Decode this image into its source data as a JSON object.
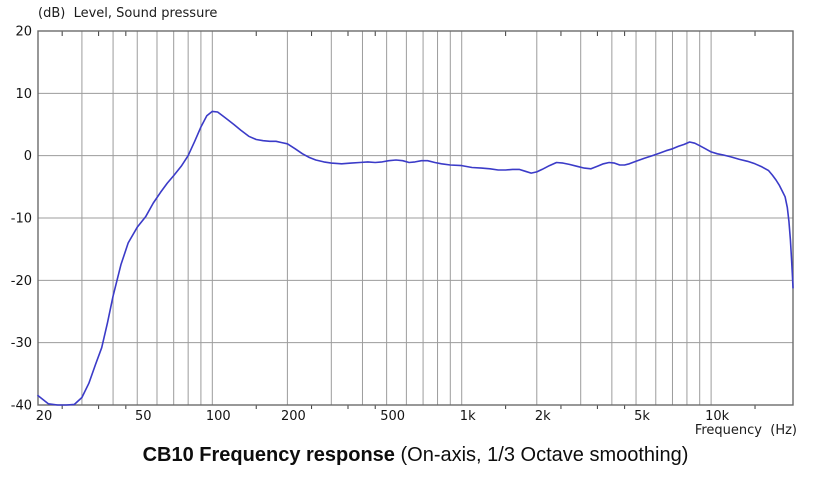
{
  "header": {
    "y_axis_title": "(dB)  Level, Sound pressure"
  },
  "footer": {
    "x_axis_title": "Frequency  (Hz)"
  },
  "caption": {
    "title_bold": "CB10 Frequency response",
    "title_normal": " (On-axis, 1/3 Octave smoothing)"
  },
  "colors": {
    "curve": "#3b3bc8",
    "grid": "#9c9c9c",
    "border": "#6b6b6b",
    "tick": "#3a3a3a",
    "text": "#141414"
  },
  "chart_data": {
    "type": "line",
    "title": "CB10 Frequency response (On-axis, 1/3 Octave smoothing)",
    "xlabel": "Frequency (Hz)",
    "ylabel": "(dB) Level, Sound pressure",
    "x_scale": "log",
    "x_range_hz": [
      20,
      21300
    ],
    "y_range_db": [
      -40,
      20
    ],
    "grid": true,
    "legend": "none",
    "y_gridlines_db": [
      20,
      10,
      0,
      -10,
      -20,
      -30,
      -40
    ],
    "y_tick_labels": [
      "20",
      "10",
      "0",
      "-10",
      "-20",
      "-30",
      "-40"
    ],
    "x_gridlines_hz": [
      30,
      40,
      50,
      60,
      70,
      80,
      90,
      100,
      200,
      300,
      400,
      500,
      600,
      700,
      800,
      900,
      1000,
      2000,
      3000,
      4000,
      5000,
      6000,
      7000,
      8000,
      9000,
      10000
    ],
    "x_minor_ticks_hz": [
      25,
      35,
      45,
      150,
      250,
      350,
      450,
      1500,
      2500,
      3500,
      4500,
      15000
    ],
    "x_tick_labels": [
      {
        "f": 20,
        "label": "20"
      },
      {
        "f": 50,
        "label": "50"
      },
      {
        "f": 100,
        "label": "100"
      },
      {
        "f": 200,
        "label": "200"
      },
      {
        "f": 500,
        "label": "500"
      },
      {
        "f": 1000,
        "label": "1k"
      },
      {
        "f": 2000,
        "label": "2k"
      },
      {
        "f": 5000,
        "label": "5k"
      },
      {
        "f": 10000,
        "label": "10k"
      }
    ],
    "series": [
      {
        "name": "On-axis response (1/3 octave smoothed)",
        "points": [
          [
            20,
            -38.5
          ],
          [
            22,
            -39.8
          ],
          [
            24,
            -40
          ],
          [
            26,
            -40
          ],
          [
            28,
            -39.9
          ],
          [
            30,
            -38.8
          ],
          [
            32,
            -36.5
          ],
          [
            34,
            -33.5
          ],
          [
            36,
            -30.8
          ],
          [
            38,
            -26.8
          ],
          [
            40,
            -22.5
          ],
          [
            43,
            -17.5
          ],
          [
            46,
            -14
          ],
          [
            50,
            -11.5
          ],
          [
            54,
            -9.8
          ],
          [
            58,
            -7.6
          ],
          [
            62,
            -5.9
          ],
          [
            66,
            -4.4
          ],
          [
            70,
            -3.2
          ],
          [
            75,
            -1.7
          ],
          [
            80,
            0
          ],
          [
            85,
            2.3
          ],
          [
            90,
            4.6
          ],
          [
            95,
            6.4
          ],
          [
            100,
            7.1
          ],
          [
            105,
            7
          ],
          [
            110,
            6.4
          ],
          [
            115,
            5.8
          ],
          [
            122,
            5
          ],
          [
            130,
            4.1
          ],
          [
            140,
            3.1
          ],
          [
            150,
            2.6
          ],
          [
            160,
            2.4
          ],
          [
            170,
            2.3
          ],
          [
            180,
            2.3
          ],
          [
            190,
            2.1
          ],
          [
            200,
            1.9
          ],
          [
            215,
            1.1
          ],
          [
            230,
            0.3
          ],
          [
            245,
            -0.3
          ],
          [
            260,
            -0.7
          ],
          [
            280,
            -1
          ],
          [
            300,
            -1.2
          ],
          [
            330,
            -1.3
          ],
          [
            360,
            -1.2
          ],
          [
            390,
            -1.1
          ],
          [
            420,
            -1
          ],
          [
            450,
            -1.1
          ],
          [
            480,
            -1
          ],
          [
            510,
            -0.8
          ],
          [
            545,
            -0.7
          ],
          [
            580,
            -0.8
          ],
          [
            615,
            -1.1
          ],
          [
            650,
            -1
          ],
          [
            690,
            -0.8
          ],
          [
            730,
            -0.8
          ],
          [
            780,
            -1.1
          ],
          [
            830,
            -1.3
          ],
          [
            900,
            -1.5
          ],
          [
            1000,
            -1.6
          ],
          [
            1100,
            -1.9
          ],
          [
            1200,
            -2
          ],
          [
            1300,
            -2.1
          ],
          [
            1400,
            -2.3
          ],
          [
            1500,
            -2.3
          ],
          [
            1600,
            -2.2
          ],
          [
            1700,
            -2.2
          ],
          [
            1800,
            -2.5
          ],
          [
            1900,
            -2.8
          ],
          [
            2000,
            -2.6
          ],
          [
            2100,
            -2.2
          ],
          [
            2250,
            -1.6
          ],
          [
            2400,
            -1.1
          ],
          [
            2550,
            -1.2
          ],
          [
            2700,
            -1.4
          ],
          [
            2900,
            -1.7
          ],
          [
            3100,
            -2
          ],
          [
            3300,
            -2.1
          ],
          [
            3500,
            -1.7
          ],
          [
            3700,
            -1.3
          ],
          [
            3900,
            -1.1
          ],
          [
            4100,
            -1.2
          ],
          [
            4300,
            -1.5
          ],
          [
            4500,
            -1.5
          ],
          [
            4700,
            -1.3
          ],
          [
            5000,
            -0.9
          ],
          [
            5400,
            -0.4
          ],
          [
            5800,
            0
          ],
          [
            6200,
            0.4
          ],
          [
            6600,
            0.8
          ],
          [
            7000,
            1.1
          ],
          [
            7400,
            1.5
          ],
          [
            7800,
            1.8
          ],
          [
            8200,
            2.2
          ],
          [
            8600,
            2
          ],
          [
            9000,
            1.6
          ],
          [
            9500,
            1.1
          ],
          [
            10000,
            0.6
          ],
          [
            10600,
            0.3
          ],
          [
            11200,
            0.1
          ],
          [
            12000,
            -0.2
          ],
          [
            13000,
            -0.6
          ],
          [
            14000,
            -0.9
          ],
          [
            15000,
            -1.3
          ],
          [
            16000,
            -1.8
          ],
          [
            17000,
            -2.4
          ],
          [
            17600,
            -3.1
          ],
          [
            18200,
            -3.9
          ],
          [
            18800,
            -4.8
          ],
          [
            19400,
            -5.9
          ],
          [
            19800,
            -6.6
          ],
          [
            20200,
            -8.3
          ],
          [
            20500,
            -10.5
          ],
          [
            20800,
            -13.5
          ],
          [
            21000,
            -16.5
          ],
          [
            21200,
            -19.5
          ],
          [
            21300,
            -21.2
          ]
        ]
      }
    ]
  }
}
